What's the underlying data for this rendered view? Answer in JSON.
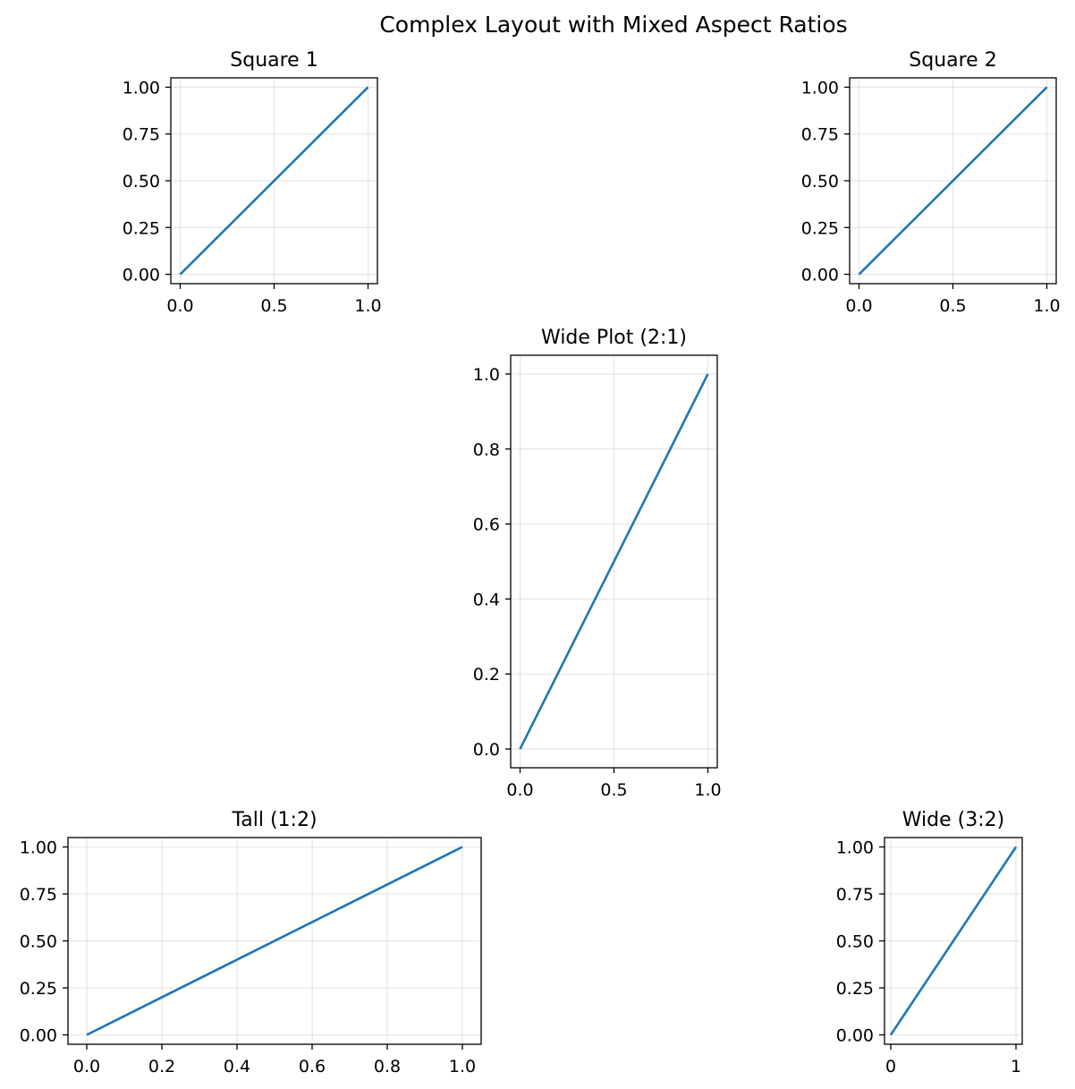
{
  "figure": {
    "title": "Complex Layout with Mixed Aspect Ratios"
  },
  "colors": {
    "series": "#1f77b4",
    "frame": "#000000",
    "grid": "#b0b0b0"
  },
  "chart_data": [
    {
      "type": "line",
      "title": "Square 1",
      "xlabel": "",
      "ylabel": "",
      "x": [
        0,
        1
      ],
      "series": [
        {
          "values": [
            0,
            1
          ]
        }
      ],
      "xlim": [
        -0.05,
        1.05
      ],
      "ylim": [
        -0.05,
        1.05
      ],
      "xticks": [
        0,
        0.5,
        1
      ],
      "xtick_labels": [
        "0.0",
        "0.5",
        "1.0"
      ],
      "yticks": [
        0,
        0.25,
        0.5,
        0.75,
        1
      ],
      "ytick_labels": [
        "0.00",
        "0.25",
        "0.50",
        "0.75",
        "1.00"
      ],
      "grid": true,
      "grid_alpha": 0.3
    },
    {
      "type": "line",
      "title": "Square 2",
      "xlabel": "",
      "ylabel": "",
      "x": [
        0,
        1
      ],
      "series": [
        {
          "values": [
            0,
            1
          ]
        }
      ],
      "xlim": [
        -0.05,
        1.05
      ],
      "ylim": [
        -0.05,
        1.05
      ],
      "xticks": [
        0,
        0.5,
        1
      ],
      "xtick_labels": [
        "0.0",
        "0.5",
        "1.0"
      ],
      "yticks": [
        0,
        0.25,
        0.5,
        0.75,
        1
      ],
      "ytick_labels": [
        "0.00",
        "0.25",
        "0.50",
        "0.75",
        "1.00"
      ],
      "grid": true,
      "grid_alpha": 0.3
    },
    {
      "type": "line",
      "title": "Wide Plot (2:1)",
      "xlabel": "",
      "ylabel": "",
      "x": [
        0,
        1
      ],
      "series": [
        {
          "values": [
            0,
            1
          ]
        }
      ],
      "xlim": [
        -0.05,
        1.05
      ],
      "ylim": [
        -0.05,
        1.05
      ],
      "xticks": [
        0,
        0.5,
        1
      ],
      "xtick_labels": [
        "0.0",
        "0.5",
        "1.0"
      ],
      "yticks": [
        0,
        0.2,
        0.4,
        0.6,
        0.8,
        1
      ],
      "ytick_labels": [
        "0.0",
        "0.2",
        "0.4",
        "0.6",
        "0.8",
        "1.0"
      ],
      "grid": true,
      "grid_alpha": 0.3
    },
    {
      "type": "line",
      "title": "Tall (1:2)",
      "xlabel": "",
      "ylabel": "",
      "x": [
        0,
        1
      ],
      "series": [
        {
          "values": [
            0,
            1
          ]
        }
      ],
      "xlim": [
        -0.05,
        1.05
      ],
      "ylim": [
        -0.05,
        1.05
      ],
      "xticks": [
        0,
        0.2,
        0.4,
        0.6,
        0.8,
        1
      ],
      "xtick_labels": [
        "0.0",
        "0.2",
        "0.4",
        "0.6",
        "0.8",
        "1.0"
      ],
      "yticks": [
        0,
        0.25,
        0.5,
        0.75,
        1
      ],
      "ytick_labels": [
        "0.00",
        "0.25",
        "0.50",
        "0.75",
        "1.00"
      ],
      "grid": true,
      "grid_alpha": 0.3
    },
    {
      "type": "line",
      "title": "Wide (3:2)",
      "xlabel": "",
      "ylabel": "",
      "x": [
        0,
        1
      ],
      "series": [
        {
          "values": [
            0,
            1
          ]
        }
      ],
      "xlim": [
        -0.05,
        1.05
      ],
      "ylim": [
        -0.05,
        1.05
      ],
      "xticks": [
        0,
        1
      ],
      "xtick_labels": [
        "0",
        "1"
      ],
      "yticks": [
        0,
        0.25,
        0.5,
        0.75,
        1
      ],
      "ytick_labels": [
        "0.00",
        "0.25",
        "0.50",
        "0.75",
        "1.00"
      ],
      "grid": true,
      "grid_alpha": 0.3
    }
  ]
}
